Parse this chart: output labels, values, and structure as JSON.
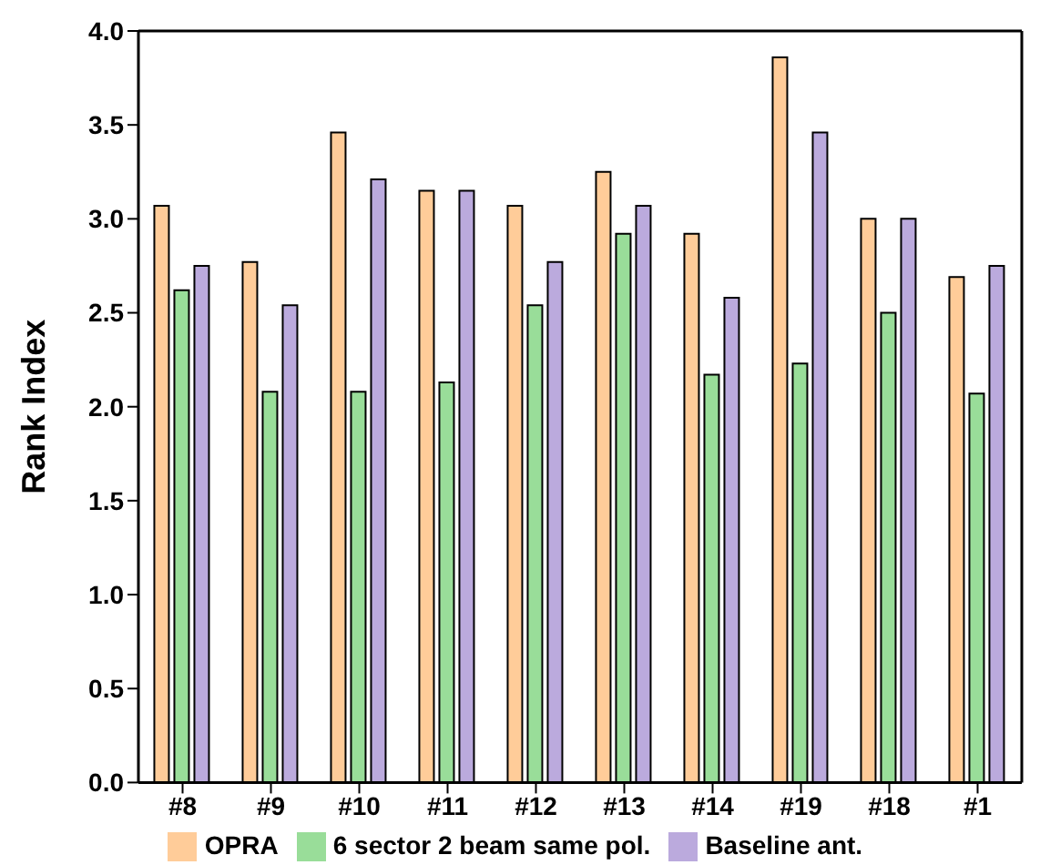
{
  "chart_data": {
    "type": "bar",
    "ylabel": "Rank Index",
    "categories": [
      "#8",
      "#9",
      "#10",
      "#11",
      "#12",
      "#13",
      "#14",
      "#19",
      "#18",
      "#1"
    ],
    "series": [
      {
        "name": "OPRA",
        "color": "#ffcc99",
        "values": [
          3.07,
          2.77,
          3.46,
          3.15,
          3.07,
          3.25,
          2.92,
          3.86,
          3.0,
          2.69
        ]
      },
      {
        "name": "6 sector 2 beam same pol.",
        "color": "#99dd99",
        "values": [
          2.62,
          2.08,
          2.08,
          2.13,
          2.54,
          2.92,
          2.17,
          2.23,
          2.5,
          2.07
        ]
      },
      {
        "name": "Baseline ant.",
        "color": "#bbaadd",
        "values": [
          2.75,
          2.54,
          3.21,
          3.15,
          2.77,
          3.07,
          2.58,
          3.46,
          3.0,
          2.75
        ]
      }
    ],
    "ylim": [
      0,
      4
    ],
    "yticks": [
      {
        "value": 0,
        "label": "0.0"
      },
      0.5,
      {
        "value": 1,
        "label": "1.0"
      },
      1.5,
      {
        "value": 2,
        "label": "2.0"
      },
      2.5,
      {
        "value": 3,
        "label": "3.0"
      },
      3.5,
      {
        "value": 4,
        "label": "4.0"
      }
    ],
    "legend": "bottom"
  }
}
